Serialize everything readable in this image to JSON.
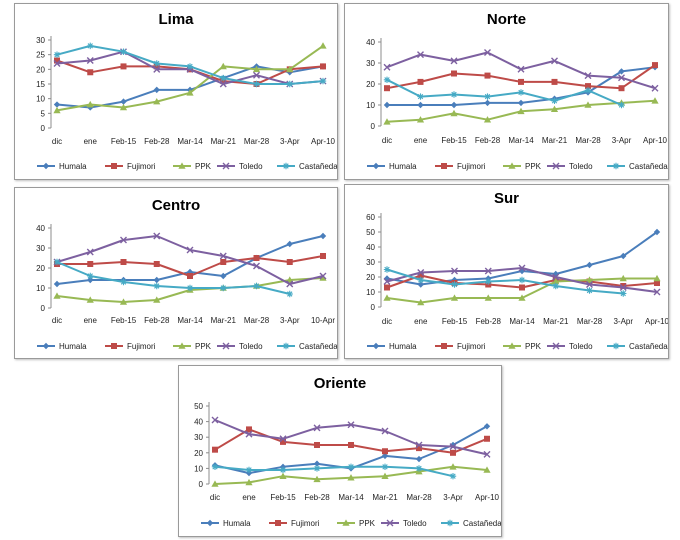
{
  "colors": {
    "Humala": "#4a7ebb",
    "Fujimori": "#be4b48",
    "PPK": "#98b954",
    "Toledo": "#7d60a0",
    "Castañeda": "#46aac5"
  },
  "chart_data": [
    {
      "type": "line",
      "title": "Lima",
      "categories": [
        "dic",
        "ene",
        "Feb-15",
        "Feb-28",
        "Mar-14",
        "Mar-21",
        "Mar-28",
        "3-Apr",
        "Apr-10"
      ],
      "ylim": [
        0,
        30
      ],
      "yticks": [
        0,
        5,
        10,
        15,
        20,
        25,
        30
      ],
      "grid": false,
      "legend": "bottom",
      "series": [
        {
          "name": "Humala",
          "marker": "diamond",
          "values": [
            8,
            7,
            9,
            13,
            13,
            17,
            21,
            19,
            21
          ]
        },
        {
          "name": "Fujimori",
          "marker": "square",
          "values": [
            23,
            19,
            21,
            21,
            20,
            16,
            15,
            20,
            21
          ]
        },
        {
          "name": "PPK",
          "marker": "triangle",
          "values": [
            6,
            8,
            7,
            9,
            12,
            21,
            20,
            20,
            28
          ]
        },
        {
          "name": "Toledo",
          "marker": "x",
          "values": [
            22,
            23,
            26,
            20,
            20,
            15,
            18,
            15,
            16
          ]
        },
        {
          "name": "Castañeda",
          "marker": "star",
          "values": [
            25,
            28,
            26,
            22,
            21,
            17,
            15,
            15,
            16
          ]
        }
      ]
    },
    {
      "type": "line",
      "title": "Norte",
      "categories": [
        "dic",
        "ene",
        "Feb-15",
        "Feb-28",
        "Mar-14",
        "Mar-21",
        "Mar-28",
        "3-Apr",
        "Apr-10"
      ],
      "ylim": [
        0,
        40
      ],
      "yticks": [
        0,
        10,
        20,
        30,
        40
      ],
      "grid": false,
      "legend": "bottom",
      "series": [
        {
          "name": "Humala",
          "marker": "diamond",
          "values": [
            10,
            10,
            10,
            11,
            11,
            13,
            16,
            26,
            28
          ]
        },
        {
          "name": "Fujimori",
          "marker": "square",
          "values": [
            18,
            21,
            25,
            24,
            21,
            21,
            19,
            18,
            29
          ]
        },
        {
          "name": "PPK",
          "marker": "triangle",
          "values": [
            2,
            3,
            6,
            3,
            7,
            8,
            10,
            11,
            12
          ]
        },
        {
          "name": "Toledo",
          "marker": "x",
          "values": [
            28,
            34,
            31,
            35,
            27,
            31,
            24,
            23,
            18
          ]
        },
        {
          "name": "Castañeda",
          "marker": "star",
          "values": [
            22,
            14,
            15,
            14,
            16,
            12,
            17,
            10,
            null
          ]
        }
      ]
    },
    {
      "type": "line",
      "title": "Centro",
      "categories": [
        "dic",
        "ene",
        "Feb-15",
        "Feb-28",
        "Mar-14",
        "Mar-21",
        "Mar-28",
        "3-Apr",
        "10-Apr"
      ],
      "ylim": [
        0,
        40
      ],
      "yticks": [
        0,
        10,
        20,
        30,
        40
      ],
      "grid": false,
      "legend": "bottom",
      "series": [
        {
          "name": "Humala",
          "marker": "diamond",
          "values": [
            12,
            14,
            14,
            14,
            18,
            16,
            25,
            32,
            36
          ]
        },
        {
          "name": "Fujimori",
          "marker": "square",
          "values": [
            22,
            22,
            23,
            22,
            16,
            23,
            25,
            23,
            26
          ]
        },
        {
          "name": "PPK",
          "marker": "triangle",
          "values": [
            6,
            4,
            3,
            4,
            9,
            10,
            11,
            14,
            15
          ]
        },
        {
          "name": "Toledo",
          "marker": "x",
          "values": [
            23,
            28,
            34,
            36,
            29,
            26,
            21,
            12,
            16
          ]
        },
        {
          "name": "Castañeda",
          "marker": "star",
          "values": [
            23,
            16,
            13,
            11,
            10,
            10,
            11,
            7,
            null
          ]
        }
      ]
    },
    {
      "type": "line",
      "title": "Sur",
      "categories": [
        "dic",
        "ene",
        "Feb-15",
        "Feb-28",
        "Mar-14",
        "Mar-21",
        "Mar-28",
        "3-Apr",
        "Apr-10"
      ],
      "ylim": [
        0,
        60
      ],
      "yticks": [
        0,
        10,
        20,
        30,
        40,
        50,
        60
      ],
      "grid": false,
      "legend": "bottom",
      "series": [
        {
          "name": "Humala",
          "marker": "diamond",
          "values": [
            19,
            15,
            18,
            19,
            24,
            22,
            28,
            34,
            50
          ]
        },
        {
          "name": "Fujimori",
          "marker": "square",
          "values": [
            13,
            21,
            16,
            15,
            13,
            18,
            17,
            14,
            16
          ]
        },
        {
          "name": "PPK",
          "marker": "triangle",
          "values": [
            6,
            3,
            6,
            6,
            6,
            17,
            18,
            19,
            19
          ]
        },
        {
          "name": "Toledo",
          "marker": "x",
          "values": [
            17,
            23,
            24,
            24,
            26,
            20,
            15,
            13,
            10
          ]
        },
        {
          "name": "Castañeda",
          "marker": "star",
          "values": [
            25,
            18,
            15,
            17,
            18,
            14,
            11,
            9,
            null
          ]
        }
      ]
    },
    {
      "type": "line",
      "title": "Oriente",
      "categories": [
        "dic",
        "ene",
        "Feb-15",
        "Feb-28",
        "Mar-14",
        "Mar-21",
        "Mar-28",
        "3-Apr",
        "Apr-10"
      ],
      "ylim": [
        0,
        50
      ],
      "yticks": [
        0,
        10,
        20,
        30,
        40,
        50
      ],
      "grid": false,
      "legend": "bottom",
      "series": [
        {
          "name": "Humala",
          "marker": "diamond",
          "values": [
            12,
            7,
            11,
            13,
            10,
            18,
            16,
            25,
            37
          ]
        },
        {
          "name": "Fujimori",
          "marker": "square",
          "values": [
            22,
            35,
            27,
            25,
            25,
            21,
            23,
            20,
            29
          ]
        },
        {
          "name": "PPK",
          "marker": "triangle",
          "values": [
            0,
            1,
            5,
            3,
            4,
            5,
            8,
            11,
            9
          ]
        },
        {
          "name": "Toledo",
          "marker": "x",
          "values": [
            41,
            32,
            29,
            36,
            38,
            34,
            25,
            24,
            19
          ]
        },
        {
          "name": "Castañeda",
          "marker": "star",
          "values": [
            11,
            9,
            9,
            10,
            11,
            11,
            10,
            5,
            null
          ]
        }
      ]
    }
  ]
}
